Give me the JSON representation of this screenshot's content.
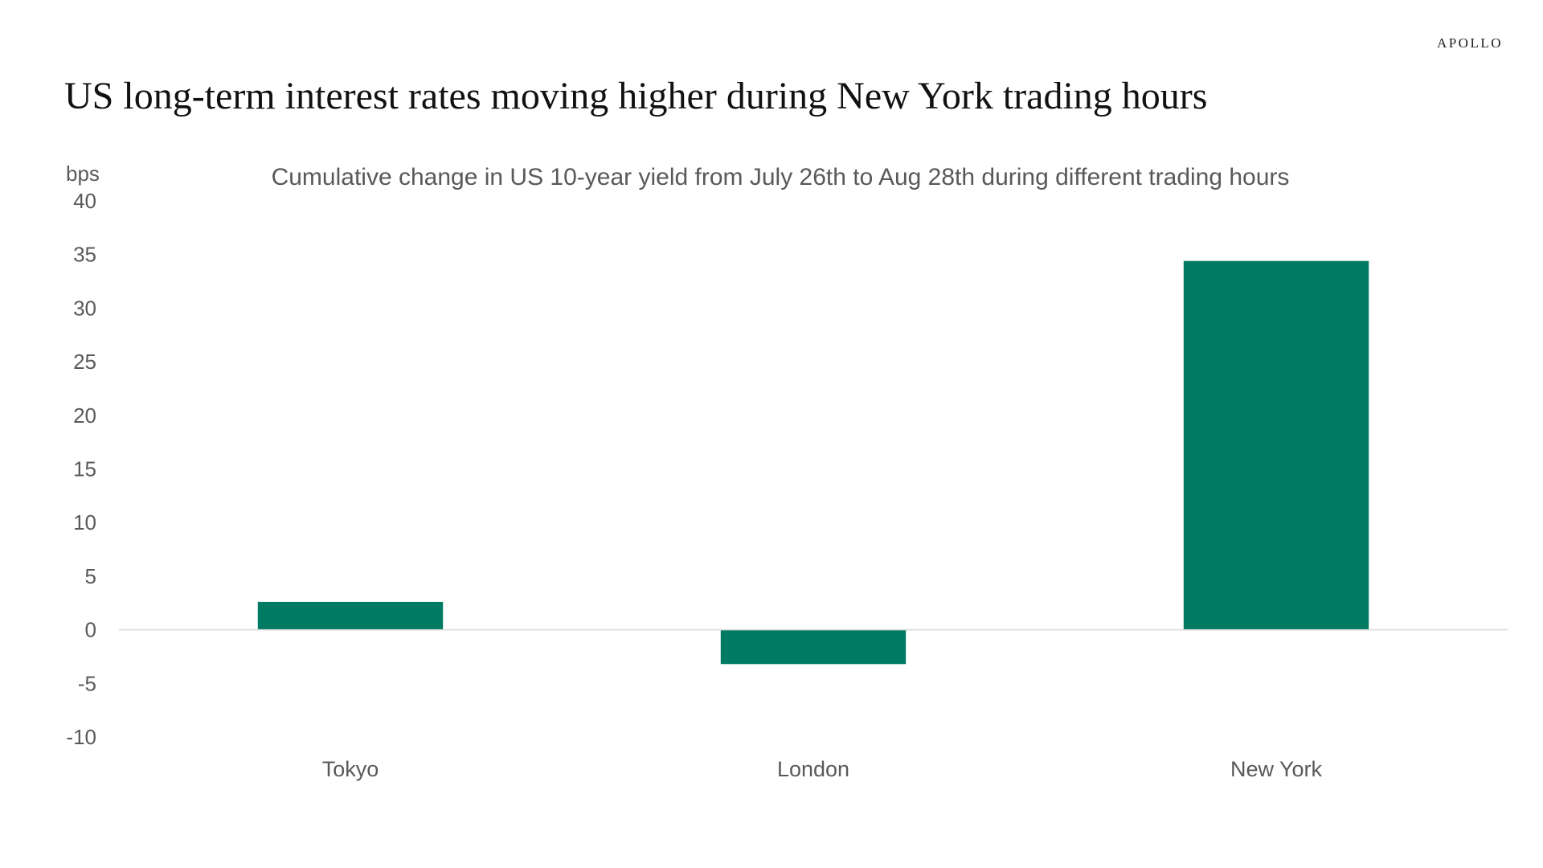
{
  "brand": "APOLLO",
  "headline": "US long-term interest rates moving higher during New York trading hours",
  "chart_data": {
    "type": "bar",
    "title": "Cumulative change in US 10-year yield from July 26th to Aug 28th during different trading hours",
    "ylabel": "bps",
    "xlabel": "",
    "categories": [
      "Tokyo",
      "London",
      "New York"
    ],
    "values": [
      2.6,
      -3.2,
      34.4
    ],
    "ylim": [
      -10,
      40
    ],
    "yticks": [
      -10,
      -5,
      0,
      5,
      10,
      15,
      20,
      25,
      30,
      35,
      40
    ],
    "grid": false,
    "legend": "none",
    "bar_color": "#007B63",
    "axis_color": "#D9D9D9"
  }
}
